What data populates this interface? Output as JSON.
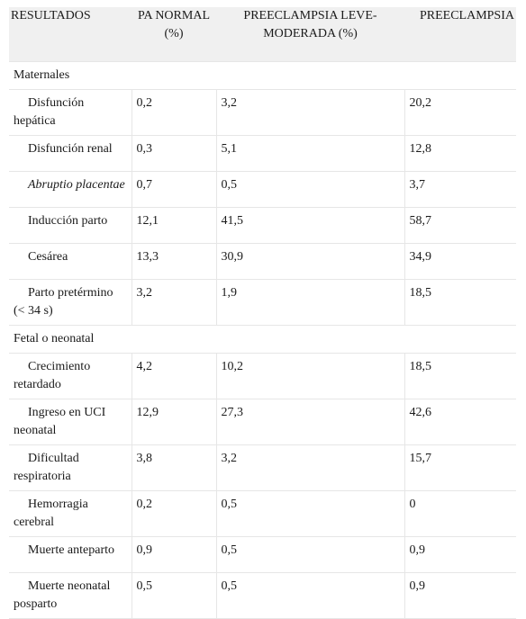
{
  "headers": [
    "RESULTADOS",
    "PA NORMAL (%)",
    "PREECLAMPSIA LEVE-MODERADA (%)",
    "PREECLAMPSIA"
  ],
  "sections": [
    {
      "title": "Maternales",
      "rows": [
        {
          "label": "Disfunción hepática",
          "normal": "0,2",
          "leve": "3,2",
          "grave": "20,2",
          "italic": false
        },
        {
          "label": "Disfunción renal",
          "normal": "0,3",
          "leve": "5,1",
          "grave": "12,8",
          "italic": false
        },
        {
          "label": "Abruptio placentae",
          "normal": "0,7",
          "leve": "0,5",
          "grave": "3,7",
          "italic": true
        },
        {
          "label": "Inducción parto",
          "normal": "12,1",
          "leve": "41,5",
          "grave": "58,7",
          "italic": false
        },
        {
          "label": "Cesárea",
          "normal": "13,3",
          "leve": "30,9",
          "grave": "34,9",
          "italic": false
        },
        {
          "label": "Parto pretérmino (< 34 s)",
          "normal": "3,2",
          "leve": "1,9",
          "grave": "18,5",
          "italic": false
        }
      ]
    },
    {
      "title": "Fetal o neonatal",
      "rows": [
        {
          "label": "Crecimiento retardado",
          "normal": "4,2",
          "leve": "10,2",
          "grave": "18,5",
          "italic": false
        },
        {
          "label": "Ingreso en UCI neonatal",
          "normal": "12,9",
          "leve": "27,3",
          "grave": "42,6",
          "italic": false
        },
        {
          "label": "Dificultad respiratoria",
          "normal": "3,8",
          "leve": "3,2",
          "grave": "15,7",
          "italic": false
        },
        {
          "label": "Hemorragia cerebral",
          "normal": "0,2",
          "leve": "0,5",
          "grave": "0",
          "italic": false
        },
        {
          "label": "Muerte anteparto",
          "normal": "0,9",
          "leve": "0,5",
          "grave": "0,9",
          "italic": false
        },
        {
          "label": "Muerte neonatal posparto",
          "normal": "0,5",
          "leve": "0,5",
          "grave": "0,9",
          "italic": false
        }
      ]
    }
  ]
}
